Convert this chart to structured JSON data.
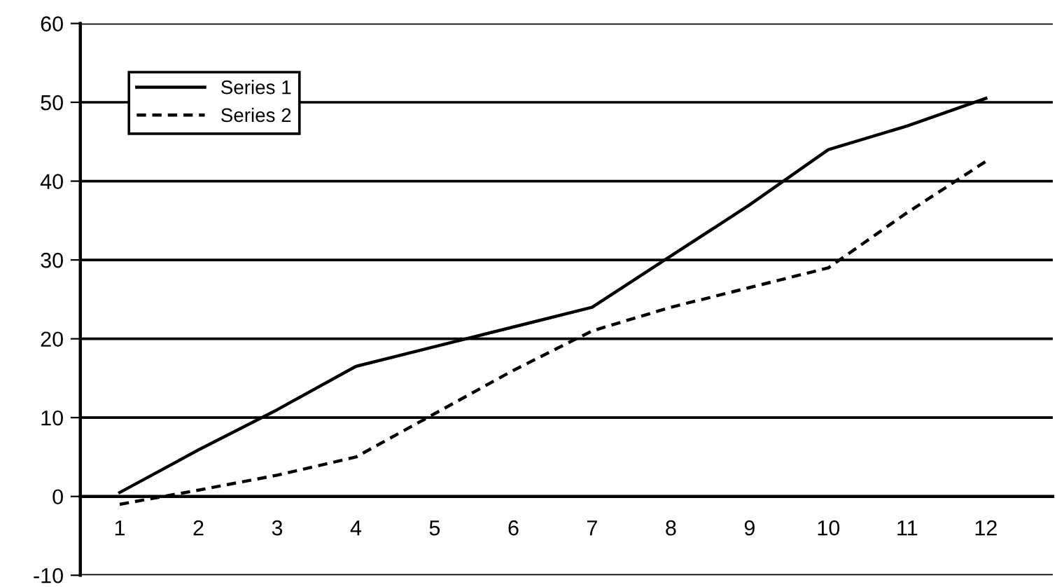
{
  "chart_data": {
    "type": "line",
    "categories": [
      "1",
      "2",
      "3",
      "4",
      "5",
      "6",
      "7",
      "8",
      "9",
      "10",
      "11",
      "12"
    ],
    "series": [
      {
        "name": "Series 1",
        "color": "#000000",
        "line_style": "solid",
        "values": [
          0.5,
          5.9,
          11,
          16.5,
          19,
          21.5,
          24,
          30.5,
          37,
          44,
          47,
          50.5
        ]
      },
      {
        "name": "Series 2",
        "color": "#000000",
        "line_style": "dashed",
        "values": [
          -1,
          0.8,
          2.7,
          5,
          10.5,
          16,
          21,
          24,
          26.5,
          29,
          36,
          42.5
        ]
      }
    ],
    "ylim": [
      -10,
      60
    ],
    "yticks": [
      -10,
      0,
      10,
      20,
      30,
      40,
      50,
      60
    ],
    "grid": "y",
    "legend": "top left",
    "marker": "none"
  }
}
